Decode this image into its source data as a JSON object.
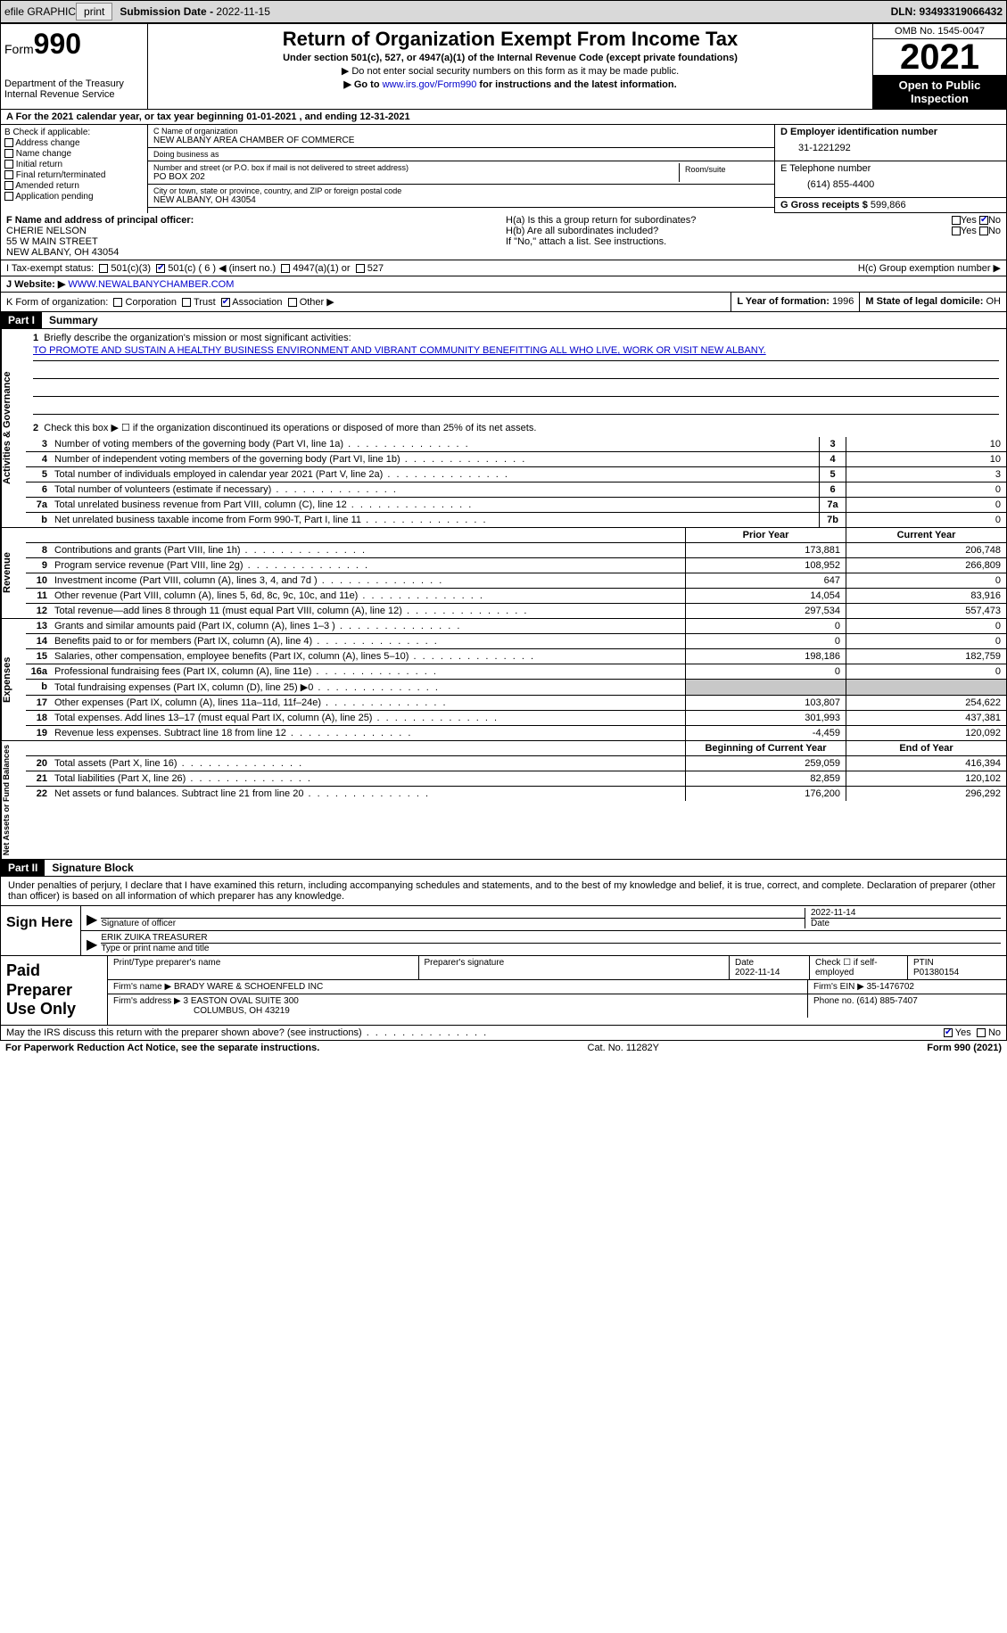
{
  "topbar": {
    "efile": "efile GRAPHIC",
    "print": "print",
    "subdate_label": "Submission Date - ",
    "subdate": "2022-11-15",
    "dln": "DLN: 93493319066432"
  },
  "header": {
    "form_label": "Form",
    "form_no": "990",
    "dept": "Department of the Treasury",
    "irs": "Internal Revenue Service",
    "title": "Return of Organization Exempt From Income Tax",
    "sub1": "Under section 501(c), 527, or 4947(a)(1) of the Internal Revenue Code (except private foundations)",
    "sub2": "▶ Do not enter social security numbers on this form as it may be made public.",
    "sub3_pre": "▶ Go to ",
    "sub3_link": "www.irs.gov/Form990",
    "sub3_post": " for instructions and the latest information.",
    "omb": "OMB No. 1545-0047",
    "year": "2021",
    "open": "Open to Public Inspection"
  },
  "rowA": "A For the 2021 calendar year, or tax year beginning 01-01-2021    , and ending 12-31-2021",
  "colB": {
    "hdr": "B Check if applicable:",
    "opts": [
      "Address change",
      "Name change",
      "Initial return",
      "Final return/terminated",
      "Amended return",
      "Application pending"
    ]
  },
  "colC": {
    "name_lbl": "C Name of organization",
    "name": "NEW ALBANY AREA CHAMBER OF COMMERCE",
    "dba_lbl": "Doing business as",
    "dba": "",
    "street_lbl": "Number and street (or P.O. box if mail is not delivered to street address)",
    "street": "PO BOX 202",
    "suite_lbl": "Room/suite",
    "city_lbl": "City or town, state or province, country, and ZIP or foreign postal code",
    "city": "NEW ALBANY, OH  43054"
  },
  "colD": {
    "ein_lbl": "D Employer identification number",
    "ein": "31-1221292",
    "tel_lbl": "E Telephone number",
    "tel": "(614) 855-4400",
    "gross_lbl": "G Gross receipts $ ",
    "gross": "599,866"
  },
  "rowF": {
    "lbl": "F  Name and address of principal officer:",
    "name": "CHERIE NELSON",
    "addr1": "55 W MAIN STREET",
    "addr2": "NEW ALBANY, OH  43054"
  },
  "rowH": {
    "ha": "H(a)  Is this a group return for subordinates?",
    "hb": "H(b)  Are all subordinates included?",
    "hb_note": "If \"No,\" attach a list. See instructions.",
    "hc": "H(c)  Group exemption number ▶",
    "yes": "Yes",
    "no": "No"
  },
  "rowI": {
    "lbl": "I    Tax-exempt status:",
    "o1": "501(c)(3)",
    "o2": "501(c) ( 6 ) ◀ (insert no.)",
    "o3": "4947(a)(1) or",
    "o4": "527"
  },
  "rowJ": {
    "lbl": "J   Website: ▶  ",
    "url": "WWW.NEWALBANYCHAMBER.COM"
  },
  "rowK": {
    "lbl": "K Form of organization:",
    "o1": "Corporation",
    "o2": "Trust",
    "o3": "Association",
    "o4": "Other ▶",
    "l_lbl": "L Year of formation: ",
    "l_val": "1996",
    "m_lbl": "M State of legal domicile: ",
    "m_val": "OH"
  },
  "part1": {
    "hdr": "Part I",
    "title": "Summary",
    "q1_lbl": "Briefly describe the organization's mission or most significant activities:",
    "q1_val": "TO PROMOTE AND SUSTAIN A HEALTHY BUSINESS ENVIRONMENT AND VIBRANT COMMUNITY BENEFITTING ALL WHO LIVE, WORK OR VISIT NEW ALBANY.",
    "q2": "Check this box ▶ ☐  if the organization discontinued its operations or disposed of more than 25% of its net assets.",
    "side1": "Activities & Governance",
    "side2": "Revenue",
    "side3": "Expenses",
    "side4": "Net Assets or Fund Balances",
    "lines_gov": [
      {
        "n": "3",
        "t": "Number of voting members of the governing body (Part VI, line 1a)",
        "b": "3",
        "v": "10"
      },
      {
        "n": "4",
        "t": "Number of independent voting members of the governing body (Part VI, line 1b)",
        "b": "4",
        "v": "10"
      },
      {
        "n": "5",
        "t": "Total number of individuals employed in calendar year 2021 (Part V, line 2a)",
        "b": "5",
        "v": "3"
      },
      {
        "n": "6",
        "t": "Total number of volunteers (estimate if necessary)",
        "b": "6",
        "v": "0"
      },
      {
        "n": "7a",
        "t": "Total unrelated business revenue from Part VIII, column (C), line 12",
        "b": "7a",
        "v": "0"
      },
      {
        "n": "b",
        "t": "Net unrelated business taxable income from Form 990-T, Part I, line 11",
        "b": "7b",
        "v": "0"
      }
    ],
    "hdr_py": "Prior Year",
    "hdr_cy": "Current Year",
    "lines_rev": [
      {
        "n": "8",
        "t": "Contributions and grants (Part VIII, line 1h)",
        "py": "173,881",
        "cy": "206,748"
      },
      {
        "n": "9",
        "t": "Program service revenue (Part VIII, line 2g)",
        "py": "108,952",
        "cy": "266,809"
      },
      {
        "n": "10",
        "t": "Investment income (Part VIII, column (A), lines 3, 4, and 7d )",
        "py": "647",
        "cy": "0"
      },
      {
        "n": "11",
        "t": "Other revenue (Part VIII, column (A), lines 5, 6d, 8c, 9c, 10c, and 11e)",
        "py": "14,054",
        "cy": "83,916"
      },
      {
        "n": "12",
        "t": "Total revenue—add lines 8 through 11 (must equal Part VIII, column (A), line 12)",
        "py": "297,534",
        "cy": "557,473"
      }
    ],
    "lines_exp": [
      {
        "n": "13",
        "t": "Grants and similar amounts paid (Part IX, column (A), lines 1–3 )",
        "py": "0",
        "cy": "0"
      },
      {
        "n": "14",
        "t": "Benefits paid to or for members (Part IX, column (A), line 4)",
        "py": "0",
        "cy": "0"
      },
      {
        "n": "15",
        "t": "Salaries, other compensation, employee benefits (Part IX, column (A), lines 5–10)",
        "py": "198,186",
        "cy": "182,759"
      },
      {
        "n": "16a",
        "t": "Professional fundraising fees (Part IX, column (A), line 11e)",
        "py": "0",
        "cy": "0"
      },
      {
        "n": "b",
        "t": "Total fundraising expenses (Part IX, column (D), line 25) ▶0",
        "py": "",
        "cy": "",
        "shade": true
      },
      {
        "n": "17",
        "t": "Other expenses (Part IX, column (A), lines 11a–11d, 11f–24e)",
        "py": "103,807",
        "cy": "254,622"
      },
      {
        "n": "18",
        "t": "Total expenses. Add lines 13–17 (must equal Part IX, column (A), line 25)",
        "py": "301,993",
        "cy": "437,381"
      },
      {
        "n": "19",
        "t": "Revenue less expenses. Subtract line 18 from line 12",
        "py": "-4,459",
        "cy": "120,092"
      }
    ],
    "hdr_bcy": "Beginning of Current Year",
    "hdr_eoy": "End of Year",
    "lines_net": [
      {
        "n": "20",
        "t": "Total assets (Part X, line 16)",
        "py": "259,059",
        "cy": "416,394"
      },
      {
        "n": "21",
        "t": "Total liabilities (Part X, line 26)",
        "py": "82,859",
        "cy": "120,102"
      },
      {
        "n": "22",
        "t": "Net assets or fund balances. Subtract line 21 from line 20",
        "py": "176,200",
        "cy": "296,292"
      }
    ]
  },
  "part2": {
    "hdr": "Part II",
    "title": "Signature Block",
    "decl": "Under penalties of perjury, I declare that I have examined this return, including accompanying schedules and statements, and to the best of my knowledge and belief, it is true, correct, and complete. Declaration of preparer (other than officer) is based on all information of which preparer has any knowledge.",
    "sign_here": "Sign Here",
    "sig_officer": "Signature of officer",
    "sig_date": "2022-11-14",
    "date_lbl": "Date",
    "name_title": "ERIK ZUIKA  TREASURER",
    "name_title_lbl": "Type or print name and title",
    "paid": "Paid Preparer Use Only",
    "p_name_lbl": "Print/Type preparer's name",
    "p_sig_lbl": "Preparer's signature",
    "p_date_lbl": "Date",
    "p_date": "2022-11-14",
    "p_check": "Check ☐ if self-employed",
    "ptin_lbl": "PTIN",
    "ptin": "P01380154",
    "firm_name_lbl": "Firm's name    ▶ ",
    "firm_name": "BRADY WARE & SCHOENFELD INC",
    "firm_ein_lbl": "Firm's EIN ▶ ",
    "firm_ein": "35-1476702",
    "firm_addr_lbl": "Firm's address ▶ ",
    "firm_addr1": "3 EASTON OVAL SUITE 300",
    "firm_addr2": "COLUMBUS, OH  43219",
    "phone_lbl": "Phone no. ",
    "phone": "(614) 885-7407",
    "discuss": "May the IRS discuss this return with the preparer shown above? (see instructions)",
    "yes": "Yes",
    "no": "No"
  },
  "footer": {
    "left": "For Paperwork Reduction Act Notice, see the separate instructions.",
    "mid": "Cat. No. 11282Y",
    "right": "Form 990 (2021)"
  }
}
